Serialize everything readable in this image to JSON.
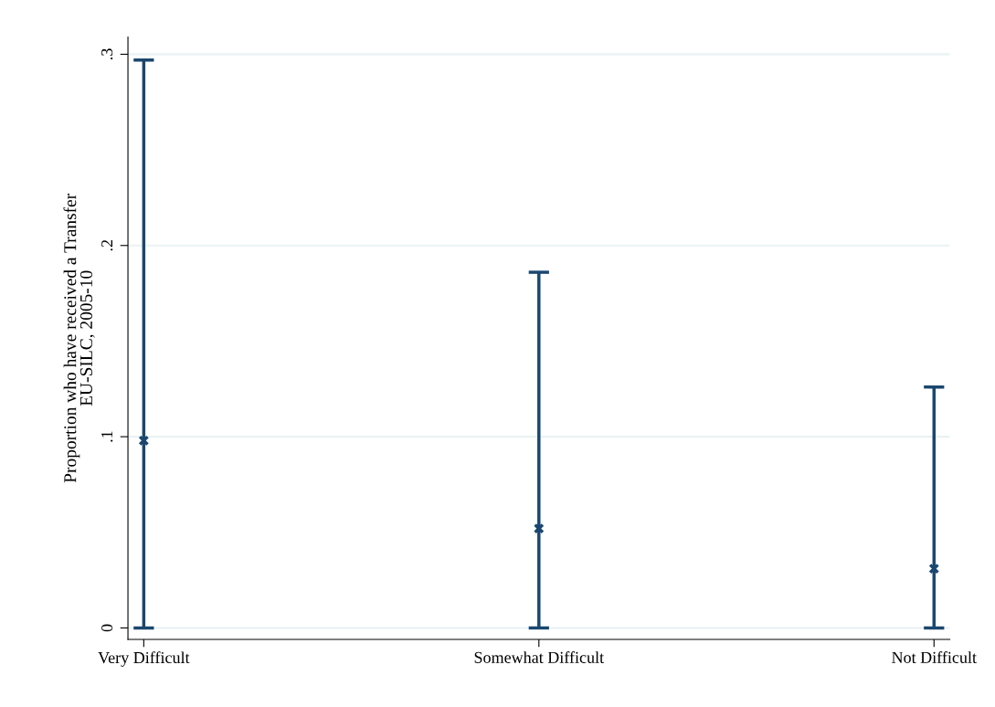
{
  "chart_data": {
    "type": "scatter",
    "ylabel": "Proportion who have received a Transfer\nEU-SILC, 2005-10",
    "categories": [
      "Very Difficult",
      "Somewhat Difficult",
      "Not Difficult"
    ],
    "series": [
      {
        "color": "#1a476f",
        "values": [
          0.098,
          0.052,
          0.031
        ],
        "errors": [
          [
            0,
            0.297
          ],
          [
            0,
            0.186
          ],
          [
            0,
            0.126
          ]
        ]
      }
    ],
    "ylim": [
      -0.006,
      0.309
    ],
    "yticks": [
      {
        "value": 0,
        "label": "0"
      },
      {
        "value": 0.1,
        "label": ".1"
      },
      {
        "value": 0.2,
        "label": ".2"
      },
      {
        "value": 0.3,
        "label": ".3"
      }
    ],
    "grid": "y",
    "marker": "cross"
  }
}
